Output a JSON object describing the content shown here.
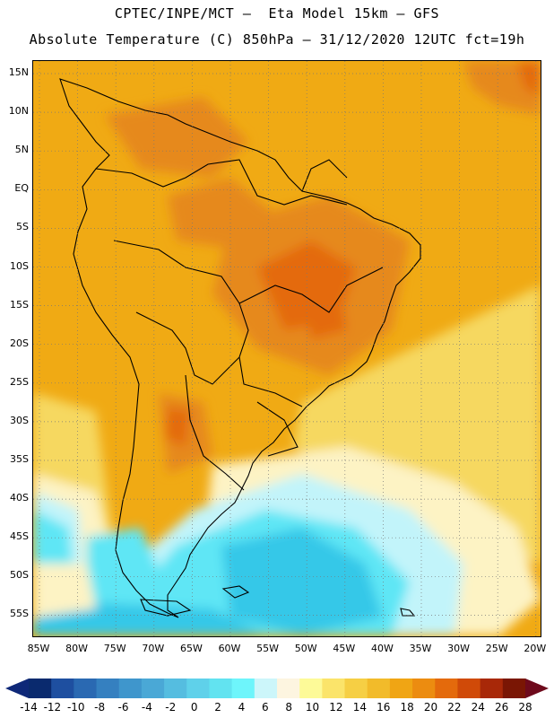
{
  "header": {
    "line1": "CPTEC/INPE/MCT –  Eta Model 15km – GFS",
    "line2": "Absolute Temperature (C) 850hPa – 31/12/2020 12UTC fct=19h"
  },
  "map": {
    "lat_labels": [
      "15N",
      "10N",
      "5N",
      "EQ",
      "5S",
      "10S",
      "15S",
      "20S",
      "25S",
      "30S",
      "35S",
      "40S",
      "45S",
      "50S",
      "55S"
    ],
    "lon_labels": [
      "85W",
      "80W",
      "75W",
      "70W",
      "65W",
      "60W",
      "55W",
      "50W",
      "45W",
      "40W",
      "35W",
      "30W",
      "25W",
      "20W"
    ],
    "colors": {
      "background_main": "#f0aa14",
      "warm_dark": "#e46a10",
      "warm_mid": "#e6891a",
      "light_yellow": "#f6d860",
      "cream": "#fdf3c4",
      "pale_cyan": "#c2f4fa",
      "cyan": "#5fe6f5",
      "cyan_deep": "#35c8e8",
      "coast": "#000000"
    }
  },
  "colorbar": {
    "labels": [
      "-14",
      "-12",
      "-10",
      "-8",
      "-6",
      "-4",
      "-2",
      "0",
      "2",
      "4",
      "6",
      "8",
      "10",
      "12",
      "14",
      "16",
      "18",
      "20",
      "22",
      "24",
      "26",
      "28"
    ],
    "colors": [
      "#0a2a6e",
      "#1e4fa0",
      "#2a69b2",
      "#3580c0",
      "#3f96cc",
      "#4aa8d6",
      "#55bde0",
      "#5fd1ea",
      "#62e3f0",
      "#6ef5fb",
      "#ccf6fa",
      "#fdf5e0",
      "#fdfa98",
      "#fbe46a",
      "#f6cf44",
      "#f2bb2a",
      "#f0a514",
      "#ec8c10",
      "#e46a0c",
      "#d04a08",
      "#a82808",
      "#7a1604"
    ],
    "low_end_color": "#0e2878",
    "high_end_color": "#6e0a1c"
  }
}
